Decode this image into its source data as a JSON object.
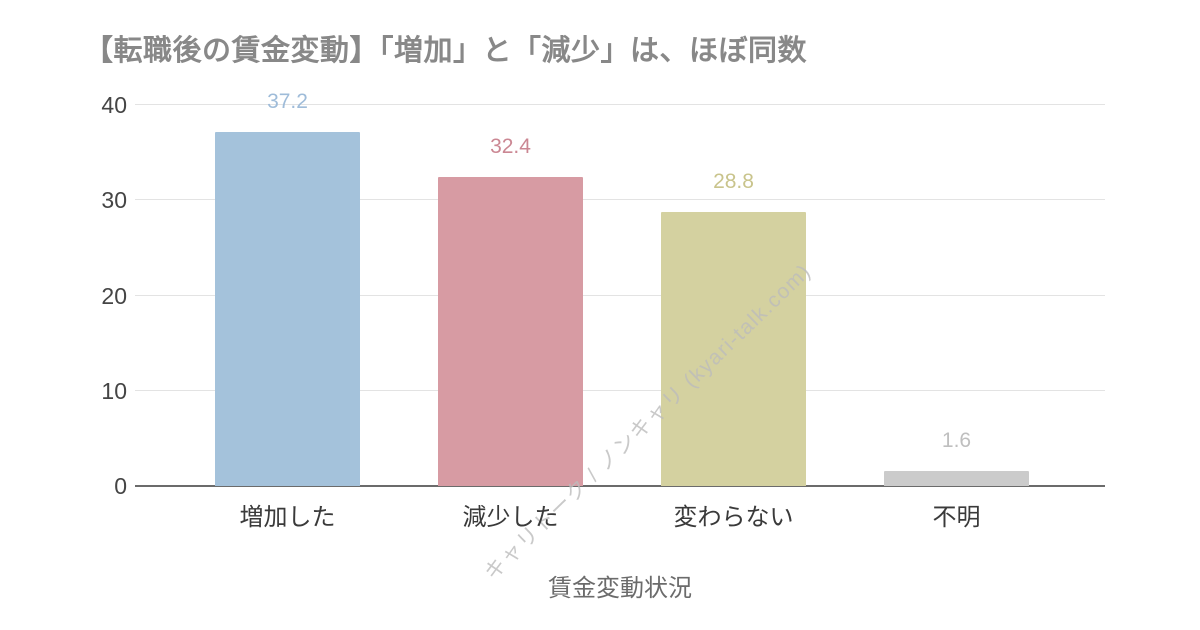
{
  "title": "【転職後の賃金変動】「増加」と「減少」は、ほぼ同数",
  "watermark": "キャリトーク / ノンキャリ (kyari-talk.com)",
  "chart_data": {
    "type": "bar",
    "title": "【転職後の賃金変動】「増加」と「減少」は、ほぼ同数",
    "categories": [
      "増加した",
      "減少した",
      "変わらない",
      "不明"
    ],
    "values": [
      37.2,
      32.4,
      28.8,
      1.6
    ],
    "value_labels": [
      "37.2",
      "32.4",
      "28.8",
      "1.6"
    ],
    "bar_colors": [
      "#a4c2db",
      "#d79ba3",
      "#d4d1a0",
      "#cbcbcb"
    ],
    "value_label_colors": [
      "#9fbcd9",
      "#cb8793",
      "#c9c48c",
      "#bfbfbf"
    ],
    "xlabel": "賃金変動状況",
    "ylabel": "",
    "ylim": [
      0,
      40
    ],
    "yticks": [
      0,
      10,
      20,
      30,
      40
    ],
    "grid": true,
    "legend": false,
    "colors": {
      "background": "#ffffff",
      "title_text": "#888888",
      "gridline": "#e3e3e3",
      "axis_line": "#6b6b6b",
      "ytick_text": "#454545",
      "xtick_text": "#3a3a3a",
      "axis_title_text": "#6b6b6b",
      "watermark_text": "#bbbbbb"
    }
  }
}
